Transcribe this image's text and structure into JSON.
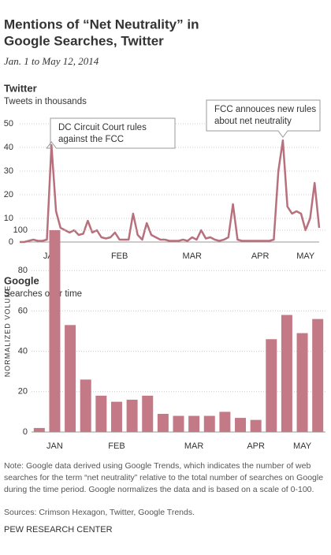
{
  "header": {
    "title": [
      "Mentions of “Net Neutrality” in",
      "Google Searches, Twitter"
    ],
    "subtitle": "Jan. 1 to May 12, 2014"
  },
  "chart_data": [
    {
      "type": "line",
      "title": "Twitter",
      "subtitle": "Tweets in thousands",
      "color": "#b8707d",
      "categories": [
        null,
        null,
        null,
        null,
        null,
        null,
        null,
        "JAN",
        null,
        null,
        null,
        null,
        null,
        null,
        null,
        null,
        null,
        null,
        null,
        null,
        null,
        null,
        "FEB",
        null,
        null,
        null,
        null,
        null,
        null,
        null,
        null,
        null,
        null,
        null,
        null,
        null,
        null,
        null,
        "MAR",
        null,
        null,
        null,
        null,
        null,
        null,
        null,
        null,
        null,
        null,
        null,
        null,
        null,
        null,
        "APR",
        null,
        null,
        null,
        null,
        null,
        null,
        null,
        null,
        null,
        "MAY",
        null,
        null,
        null
      ],
      "values": [
        0,
        0,
        0.5,
        1,
        0.5,
        0.5,
        1,
        41,
        13,
        6,
        5,
        4,
        5,
        3,
        3.5,
        9,
        4,
        5,
        2,
        1.5,
        2,
        4,
        1,
        1,
        1,
        12,
        3,
        1,
        8,
        3,
        2,
        1,
        1,
        0.5,
        0.5,
        0.5,
        1,
        0.5,
        2,
        1,
        5,
        1.5,
        2,
        1,
        0.5,
        1,
        2,
        16,
        1,
        0.5,
        0.5,
        0.5,
        0.5,
        0.5,
        0.5,
        0.5,
        1,
        30,
        43,
        15,
        12,
        13,
        12,
        5,
        10,
        25,
        6
      ],
      "ylim": [
        0,
        50
      ],
      "yticks": [
        0,
        10,
        20,
        30,
        40,
        50
      ],
      "grid": true,
      "annotations": [
        {
          "text": [
            "DC Circuit Court rules",
            "against the FCC"
          ]
        },
        {
          "text": [
            "FCC annouces new rules",
            "about net neutrality"
          ]
        }
      ]
    },
    {
      "type": "bar",
      "title": "Google",
      "subtitle": "Searches over time",
      "ylabel": "NORMALIZED VOLUME",
      "color": "#c47a86",
      "categories": [
        null,
        "JAN",
        null,
        null,
        null,
        "FEB",
        null,
        null,
        null,
        null,
        "MAR",
        null,
        null,
        null,
        "APR",
        null,
        null,
        "MAY",
        null
      ],
      "values": [
        2,
        100,
        53,
        26,
        18,
        15,
        16,
        18,
        9,
        8,
        8,
        8,
        10,
        7,
        6,
        46,
        58,
        49,
        56
      ],
      "ylim": [
        0,
        100
      ],
      "yticks": [
        0,
        20,
        40,
        60,
        80,
        100
      ],
      "grid": true
    }
  ],
  "notes": {
    "note": "Note: Google data derived using Google Trends, which indicates the number of web searches for the term “net neutrality” relative to the total number of searches on Google during the time period. Google normalizes the data and is based on a scale of 0-100.",
    "sources": "Sources: Crimson Hexagon, Twitter, Google Trends.",
    "credit": "PEW RESEARCH CENTER"
  }
}
